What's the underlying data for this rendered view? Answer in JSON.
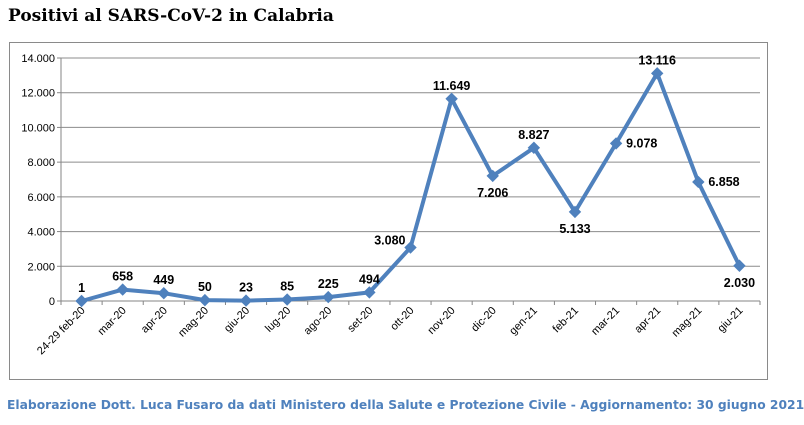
{
  "chart_data": {
    "type": "line",
    "title": "Positivi al SARS-CoV-2 in Calabria",
    "categories": [
      "24-29 feb-20",
      "mar-20",
      "apr-20",
      "mag-20",
      "giu-20",
      "lug-20",
      "ago-20",
      "set-20",
      "ott-20",
      "nov-20",
      "dic-20",
      "gen-21",
      "feb-21",
      "mar-21",
      "apr-21",
      "mag-21",
      "giu-21"
    ],
    "values": [
      1,
      658,
      449,
      50,
      23,
      85,
      225,
      494,
      3080,
      11649,
      7206,
      8827,
      5133,
      9078,
      13116,
      6858,
      2030
    ],
    "data_labels": [
      "1",
      "658",
      "449",
      "50",
      "23",
      "85",
      "225",
      "494",
      "3.080",
      "11.649",
      "7.206",
      "8.827",
      "5.133",
      "9.078",
      "13.116",
      "6.858",
      "2.030"
    ],
    "ylim": [
      0,
      14000
    ],
    "yticks": [
      0,
      2000,
      4000,
      6000,
      8000,
      10000,
      12000,
      14000
    ],
    "ytick_labels": [
      "0",
      "2.000",
      "4.000",
      "6.000",
      "8.000",
      "10.000",
      "12.000",
      "14.000"
    ],
    "grid": true,
    "line_color": "#4f81bd",
    "xlabel": "",
    "ylabel": ""
  },
  "footer": "Elaborazione Dott. Luca Fusaro da dati Ministero della Salute e Protezione Civile - Aggiornamento: 30 giugno 2021"
}
